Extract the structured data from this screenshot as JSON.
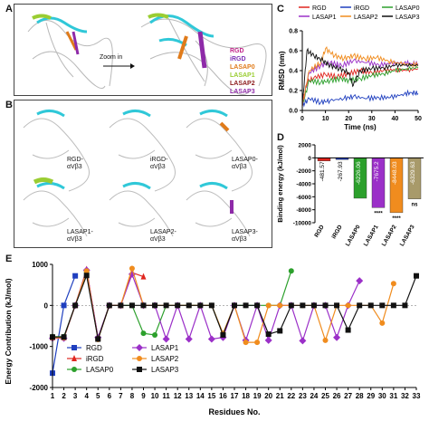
{
  "panel_letters": {
    "a": "A",
    "b": "B",
    "c": "C",
    "d": "D",
    "e": "E"
  },
  "panel_a": {
    "zoom_label": "Zoom in",
    "legend": [
      {
        "label": "RGD",
        "color": "#c0248a"
      },
      {
        "label": "iRGD",
        "color": "#7b2fb5"
      },
      {
        "label": "LASAP0",
        "color": "#e07b1a"
      },
      {
        "label": "LASAP1",
        "color": "#9acd32"
      },
      {
        "label": "LASAP2",
        "color": "#8b1a1a"
      },
      {
        "label": "LASAP3",
        "color": "#8e2aa8"
      }
    ]
  },
  "panel_b": {
    "labels": [
      "RGD-\nαVβ3",
      "iRGD-\nαVβ3",
      "LASAP0-\nαVβ3",
      "LASAP1-\nαVβ3",
      "LASAP2-\nαVβ3",
      "LASAP3-\nαVβ3"
    ]
  },
  "chart_data": [
    {
      "id": "C",
      "type": "line",
      "xlabel": "Time (ns)",
      "ylabel": "RMSD (nm)",
      "xlim": [
        0,
        50
      ],
      "ylim": [
        0,
        0.8
      ],
      "xticks": [
        "0",
        "10",
        "20",
        "30",
        "40",
        "50"
      ],
      "yticks": [
        "0.0",
        "0.2",
        "0.4",
        "0.6",
        "0.8"
      ],
      "legend_position": "top",
      "series": [
        {
          "name": "RGD",
          "color": "#e0261f",
          "points": [
            [
              0,
              0.05
            ],
            [
              2,
              0.28
            ],
            [
              5,
              0.33
            ],
            [
              10,
              0.36
            ],
            [
              15,
              0.34
            ],
            [
              20,
              0.37
            ],
            [
              25,
              0.4
            ],
            [
              30,
              0.38
            ],
            [
              35,
              0.4
            ],
            [
              40,
              0.41
            ],
            [
              45,
              0.4
            ],
            [
              50,
              0.42
            ]
          ]
        },
        {
          "name": "iRGD",
          "color": "#1f3fbf",
          "points": [
            [
              0,
              0.05
            ],
            [
              3,
              0.12
            ],
            [
              8,
              0.08
            ],
            [
              12,
              0.1
            ],
            [
              18,
              0.12
            ],
            [
              22,
              0.14
            ],
            [
              28,
              0.12
            ],
            [
              33,
              0.13
            ],
            [
              38,
              0.13
            ],
            [
              43,
              0.16
            ],
            [
              47,
              0.18
            ],
            [
              50,
              0.17
            ]
          ]
        },
        {
          "name": "LASAP0",
          "color": "#2ca02c",
          "points": [
            [
              0,
              0.05
            ],
            [
              3,
              0.3
            ],
            [
              8,
              0.28
            ],
            [
              12,
              0.3
            ],
            [
              17,
              0.32
            ],
            [
              20,
              0.3
            ],
            [
              25,
              0.32
            ],
            [
              30,
              0.35
            ],
            [
              35,
              0.37
            ],
            [
              40,
              0.4
            ],
            [
              45,
              0.42
            ],
            [
              50,
              0.43
            ]
          ]
        },
        {
          "name": "LASAP1",
          "color": "#9b30c8",
          "points": [
            [
              0,
              0.05
            ],
            [
              3,
              0.38
            ],
            [
              8,
              0.45
            ],
            [
              12,
              0.48
            ],
            [
              17,
              0.45
            ],
            [
              22,
              0.5
            ],
            [
              28,
              0.48
            ],
            [
              33,
              0.46
            ],
            [
              38,
              0.47
            ],
            [
              43,
              0.48
            ],
            [
              47,
              0.47
            ],
            [
              50,
              0.47
            ]
          ]
        },
        {
          "name": "LASAP2",
          "color": "#f08c1e",
          "points": [
            [
              0,
              0.05
            ],
            [
              3,
              0.4
            ],
            [
              8,
              0.48
            ],
            [
              10,
              0.62
            ],
            [
              14,
              0.55
            ],
            [
              18,
              0.52
            ],
            [
              22,
              0.55
            ],
            [
              27,
              0.52
            ],
            [
              32,
              0.53
            ],
            [
              37,
              0.5
            ],
            [
              42,
              0.47
            ],
            [
              47,
              0.46
            ],
            [
              50,
              0.46
            ]
          ]
        },
        {
          "name": "LASAP3",
          "color": "#111111",
          "points": [
            [
              0,
              0.05
            ],
            [
              2,
              0.6
            ],
            [
              5,
              0.55
            ],
            [
              9,
              0.5
            ],
            [
              12,
              0.45
            ],
            [
              16,
              0.42
            ],
            [
              20,
              0.38
            ],
            [
              22,
              0.25
            ],
            [
              25,
              0.4
            ],
            [
              30,
              0.42
            ],
            [
              35,
              0.43
            ],
            [
              40,
              0.45
            ],
            [
              45,
              0.46
            ],
            [
              50,
              0.45
            ]
          ]
        }
      ]
    },
    {
      "id": "D",
      "type": "bar",
      "ylabel": "Binding energy (kJ/mol)",
      "ylim": [
        -10000,
        2000
      ],
      "yticks": [
        "2000",
        "0",
        "-2000",
        "-4000",
        "-6000",
        "-8000",
        "-10000"
      ],
      "categories": [
        "RGD",
        "iRGD",
        "LASAP0",
        "LASAP1",
        "LASAP2",
        "LASAP3"
      ],
      "values": [
        -481.57,
        -267.93,
        -6226.06,
        -7675.2,
        -8448.03,
        -6329.63
      ],
      "value_labels": [
        "-481.57",
        "-267.93",
        "-6226.06",
        "-7675.2",
        "-8448.03",
        "-6329.63"
      ],
      "colors": [
        "#e0261f",
        "#1f3fbf",
        "#2ca02c",
        "#9b30c8",
        "#f08c1e",
        "#a89a6a"
      ],
      "annotations": [
        "",
        "",
        "",
        "****",
        "****",
        "ns"
      ]
    },
    {
      "id": "E",
      "type": "line",
      "xlabel": "Residues No.",
      "ylabel": "Energy Contribution (kJ/mol)",
      "xlim": [
        1,
        33
      ],
      "ylim": [
        -2000,
        1000
      ],
      "xticks": [
        "1",
        "2",
        "3",
        "4",
        "5",
        "6",
        "7",
        "8",
        "9",
        "10",
        "11",
        "12",
        "13",
        "14",
        "15",
        "16",
        "17",
        "18",
        "19",
        "20",
        "21",
        "22",
        "23",
        "24",
        "25",
        "26",
        "27",
        "28",
        "29",
        "30",
        "31",
        "32",
        "33"
      ],
      "yticks": [
        "1000",
        "0",
        "-1000",
        "-2000"
      ],
      "legend_position": "bottom-left",
      "series": [
        {
          "name": "RGD",
          "color": "#1f3fbf",
          "marker": "square",
          "points": [
            [
              1,
              -1650
            ],
            [
              2,
              0
            ],
            [
              3,
              720
            ]
          ]
        },
        {
          "name": "iRGD",
          "color": "#e0261f",
          "marker": "triangle",
          "points": [
            [
              1,
              -780
            ],
            [
              2,
              -780
            ],
            [
              3,
              0
            ],
            [
              4,
              880
            ],
            [
              5,
              -800
            ],
            [
              6,
              0
            ],
            [
              7,
              0
            ],
            [
              8,
              800
            ],
            [
              9,
              700
            ]
          ]
        },
        {
          "name": "LASAP0",
          "color": "#2ca02c",
          "marker": "circle",
          "points": [
            [
              1,
              -760
            ],
            [
              2,
              -760
            ],
            [
              3,
              0
            ],
            [
              4,
              830
            ],
            [
              5,
              -820
            ],
            [
              6,
              0
            ],
            [
              7,
              0
            ],
            [
              8,
              0
            ],
            [
              9,
              -680
            ],
            [
              10,
              -720
            ],
            [
              11,
              0
            ],
            [
              12,
              0
            ],
            [
              13,
              0
            ],
            [
              14,
              0
            ],
            [
              15,
              0
            ],
            [
              16,
              -700
            ],
            [
              17,
              0
            ],
            [
              18,
              0
            ],
            [
              19,
              0
            ],
            [
              20,
              0
            ],
            [
              21,
              0
            ],
            [
              22,
              840
            ]
          ]
        },
        {
          "name": "LASAP1",
          "color": "#9b30c8",
          "marker": "diamond",
          "points": [
            [
              1,
              -800
            ],
            [
              2,
              -800
            ],
            [
              3,
              0
            ],
            [
              4,
              860
            ],
            [
              5,
              -780
            ],
            [
              6,
              0
            ],
            [
              7,
              0
            ],
            [
              8,
              760
            ],
            [
              9,
              0
            ],
            [
              10,
              0
            ],
            [
              11,
              -820
            ],
            [
              12,
              0
            ],
            [
              13,
              -820
            ],
            [
              14,
              0
            ],
            [
              15,
              -820
            ],
            [
              16,
              -780
            ],
            [
              17,
              0
            ],
            [
              18,
              -850
            ],
            [
              19,
              0
            ],
            [
              20,
              -850
            ],
            [
              21,
              0
            ],
            [
              22,
              0
            ],
            [
              23,
              -860
            ],
            [
              24,
              0
            ],
            [
              25,
              0
            ],
            [
              26,
              -780
            ],
            [
              27,
              0
            ],
            [
              28,
              600
            ]
          ]
        },
        {
          "name": "LASAP2",
          "color": "#f08c1e",
          "marker": "circle",
          "points": [
            [
              1,
              -790
            ],
            [
              2,
              -790
            ],
            [
              3,
              0
            ],
            [
              4,
              840
            ],
            [
              5,
              -830
            ],
            [
              6,
              0
            ],
            [
              7,
              0
            ],
            [
              8,
              900
            ],
            [
              9,
              0
            ],
            [
              10,
              0
            ],
            [
              11,
              0
            ],
            [
              12,
              0
            ],
            [
              13,
              0
            ],
            [
              14,
              0
            ],
            [
              15,
              0
            ],
            [
              16,
              -680
            ],
            [
              17,
              0
            ],
            [
              18,
              -900
            ],
            [
              19,
              -900
            ],
            [
              20,
              0
            ],
            [
              21,
              0
            ],
            [
              22,
              0
            ],
            [
              23,
              0
            ],
            [
              24,
              0
            ],
            [
              25,
              -850
            ],
            [
              26,
              0
            ],
            [
              27,
              0
            ],
            [
              28,
              0
            ],
            [
              29,
              0
            ],
            [
              30,
              -430
            ],
            [
              31,
              530
            ]
          ]
        },
        {
          "name": "LASAP3",
          "color": "#111111",
          "marker": "square",
          "points": [
            [
              1,
              -770
            ],
            [
              2,
              -770
            ],
            [
              3,
              0
            ],
            [
              4,
              730
            ],
            [
              5,
              -820
            ],
            [
              6,
              0
            ],
            [
              7,
              0
            ],
            [
              8,
              0
            ],
            [
              9,
              0
            ],
            [
              10,
              0
            ],
            [
              11,
              0
            ],
            [
              12,
              0
            ],
            [
              13,
              0
            ],
            [
              14,
              0
            ],
            [
              15,
              0
            ],
            [
              16,
              -720
            ],
            [
              17,
              0
            ],
            [
              18,
              0
            ],
            [
              19,
              0
            ],
            [
              20,
              -700
            ],
            [
              21,
              -620
            ],
            [
              22,
              0
            ],
            [
              23,
              0
            ],
            [
              24,
              0
            ],
            [
              25,
              0
            ],
            [
              26,
              0
            ],
            [
              27,
              -600
            ],
            [
              28,
              0
            ],
            [
              29,
              0
            ],
            [
              30,
              0
            ],
            [
              31,
              0
            ],
            [
              32,
              0
            ],
            [
              33,
              720
            ]
          ]
        }
      ]
    }
  ]
}
